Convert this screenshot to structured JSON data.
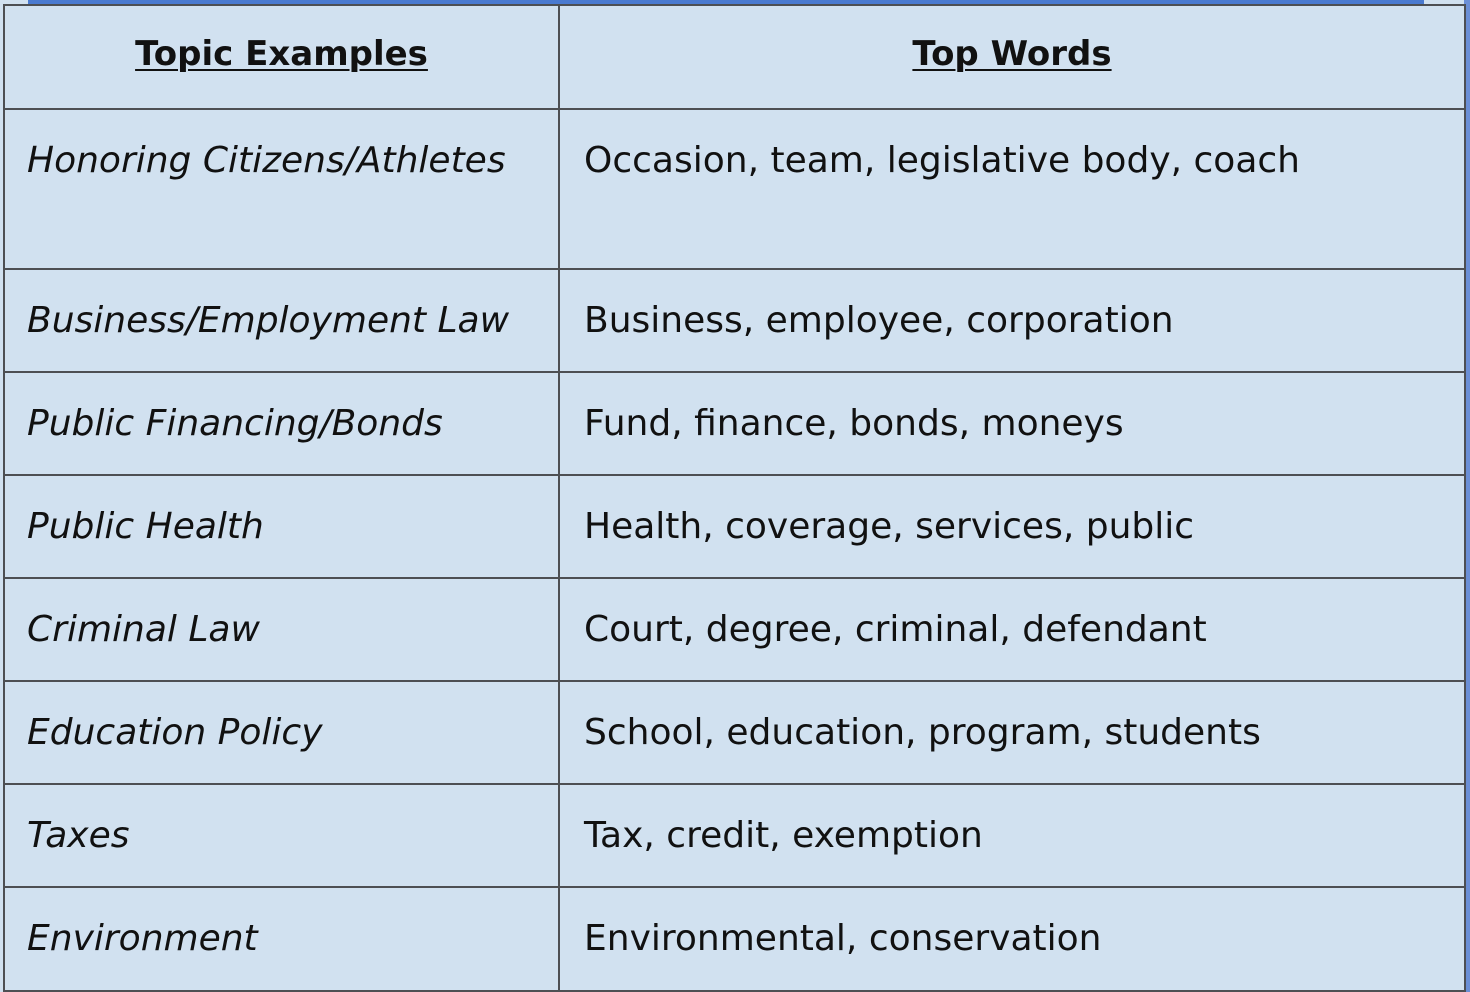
{
  "table": {
    "headers": {
      "topic": "Topic Examples",
      "words": "Top Words"
    },
    "rows": [
      {
        "topic": "Honoring Citizens/Athletes",
        "words": "Occasion, team, legislative body, coach"
      },
      {
        "topic": "Business/Employment Law",
        "words": "Business, employee, corporation"
      },
      {
        "topic": "Public Financing/Bonds",
        "words": "Fund, finance, bonds, moneys"
      },
      {
        "topic": "Public Health",
        "words": "Health, coverage, services, public"
      },
      {
        "topic": "Criminal Law",
        "words": "Court, degree, criminal, defendant"
      },
      {
        "topic": "Education Policy",
        "words": "School, education, program, students"
      },
      {
        "topic": "Taxes",
        "words": "Tax, credit, exemption"
      },
      {
        "topic": "Environment",
        "words": "Environmental, conservation"
      }
    ]
  },
  "colors": {
    "background": "#d1e1f0",
    "border": "#4d4f53",
    "accent": "#4a7ad0"
  }
}
